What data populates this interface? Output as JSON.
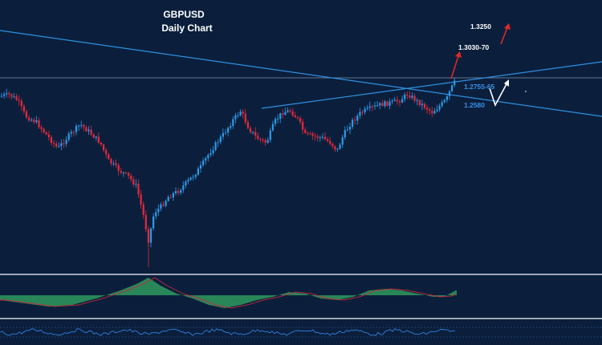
{
  "chart_data": {
    "type": "candlestick",
    "title": "GBPUSD",
    "subtitle": "Daily Chart",
    "colors": {
      "background": "#0b1f3c",
      "up_candle": "#2f9ae8",
      "down_candle": "#e8283a",
      "trendline": "#2f8fe0",
      "horizontal_level": "#7f93ad",
      "macd_histogram": "#3ecb6a",
      "macd_signal": "#c8283a",
      "separator": "#d0d6de",
      "oscillator": "#2f7fe0",
      "arrow_up": "#e02828",
      "arrow_projection": "#ffffff"
    },
    "price_levels": [
      {
        "label": "1.3250",
        "color": "white",
        "meaning": "upper target"
      },
      {
        "label": "1.3030-70",
        "color": "white",
        "meaning": "first target zone"
      },
      {
        "label": "1.2755-65",
        "color": "blue",
        "meaning": "support zone"
      },
      {
        "label": "1.2580",
        "color": "blue",
        "meaning": "lower support"
      }
    ],
    "arrows": [
      {
        "direction": "up",
        "color": "red",
        "meaning": "bullish target to 1.3030-70"
      },
      {
        "direction": "up",
        "color": "red",
        "meaning": "bullish target to 1.3250"
      },
      {
        "direction": "down-then-up",
        "color": "white",
        "meaning": "pullback to support then rally"
      }
    ],
    "trendlines": [
      {
        "name": "descending resistance",
        "direction": "down"
      },
      {
        "name": "ascending channel line",
        "direction": "up"
      },
      {
        "name": "horizontal level",
        "direction": "flat"
      }
    ],
    "indicators": [
      {
        "name": "MACD",
        "type": "histogram with signal line"
      },
      {
        "name": "Oscillator",
        "type": "line"
      }
    ]
  }
}
